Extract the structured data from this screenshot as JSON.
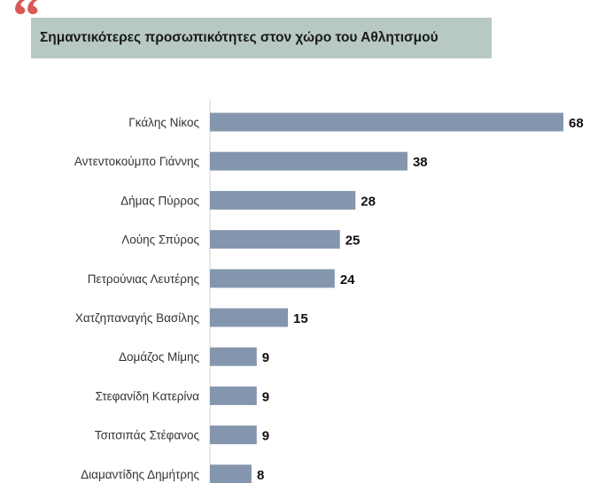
{
  "header": {
    "quote_glyph": "“",
    "title": "Σημαντικότερες προσωπικότητες στον χώρο του Αθλητισμού"
  },
  "colors": {
    "accent": "#d85a53",
    "title_background": "#b7c9c2",
    "bar": "#8496ad",
    "axis": "#d0d0d0"
  },
  "chart_data": {
    "type": "bar",
    "orientation": "horizontal",
    "title": "Σημαντικότερες προσωπικότητες στον χώρο του Αθλητισμού",
    "xlabel": "",
    "ylabel": "",
    "xlim": [
      0,
      68
    ],
    "grid": false,
    "legend": "none",
    "categories": [
      "Γκάλης Νίκος",
      "Αντεντοκούμπο Γιάννης",
      "Δήμας Πύρρος",
      "Λούης Σπύρος",
      "Πετρούνιας Λευτέρης",
      "Χατζηπαναγής Βασίλης",
      "Δομάζος Μίμης",
      "Στεφανίδη Κατερίνα",
      "Τσιτσιπάς Στέφανος",
      "Διαμαντίδης Δημήτρης"
    ],
    "values": [
      68,
      38,
      28,
      25,
      24,
      15,
      9,
      9,
      9,
      8
    ]
  }
}
